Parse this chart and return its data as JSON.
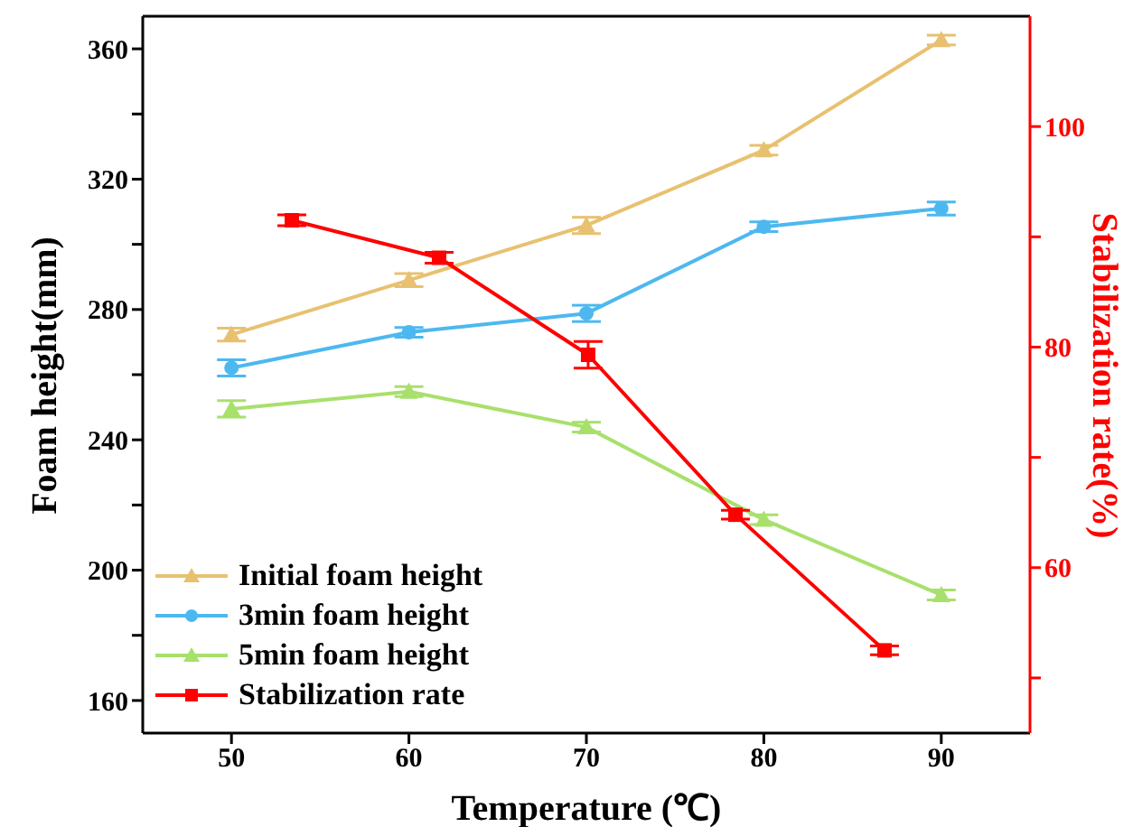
{
  "chart_data": {
    "type": "line",
    "xlabel": "Temperature (℃)",
    "ylabel": "Foam height(mm)",
    "y2label": "Stabilization rate(%)",
    "x": [
      50,
      60,
      70,
      80,
      90
    ],
    "xlim": [
      45,
      95
    ],
    "xticks": [
      50,
      60,
      70,
      80,
      90
    ],
    "ylim": [
      150,
      370
    ],
    "yticks": [
      160,
      {
        "value": 180,
        "label": null
      },
      200,
      {
        "value": 220,
        "label": null
      },
      240,
      {
        "value": 260,
        "label": null
      },
      280,
      {
        "value": 300,
        "label": null
      },
      320,
      {
        "value": 340,
        "label": null
      },
      360
    ],
    "y2lim": [
      45,
      110
    ],
    "y2ticks": [
      {
        "value": 50,
        "label": null
      },
      60,
      {
        "value": 70,
        "label": null
      },
      80,
      {
        "value": 90,
        "label": null
      },
      100
    ],
    "grid": false,
    "legend": "bottom left",
    "line_style": "solid",
    "series": [
      {
        "name": "Initial foam height",
        "color": "#e8c170",
        "marker": "triangle",
        "values": [
          272.3,
          289,
          305.8,
          328.9,
          362.7
        ],
        "errors": [
          2,
          2,
          2.5,
          1.5,
          1.5
        ]
      },
      {
        "name": "3min foam height",
        "color": "#4db8f0",
        "marker": "circle",
        "values": [
          262.1,
          273,
          278.8,
          305.4,
          311
        ],
        "errors": [
          2.5,
          1.5,
          2.5,
          1.5,
          2
        ]
      },
      {
        "name": "5min foam height",
        "color": "#a8e06c",
        "marker": "triangle",
        "values": [
          249.5,
          254.8,
          243.9,
          215.5,
          192.4
        ],
        "errors": [
          2.5,
          1.5,
          1.5,
          1.5,
          1.5
        ]
      },
      {
        "name": "Stabilization rate",
        "color": "#ff0000",
        "marker": "square",
        "axis": "y2",
        "x": [
          53.4,
          61.7,
          70.1,
          78.4,
          86.8
        ],
        "values": [
          91.5,
          88.1,
          79.3,
          64.8,
          52.5
        ],
        "errors": [
          0.5,
          0.5,
          1.2,
          0.4,
          0.4
        ]
      }
    ]
  }
}
